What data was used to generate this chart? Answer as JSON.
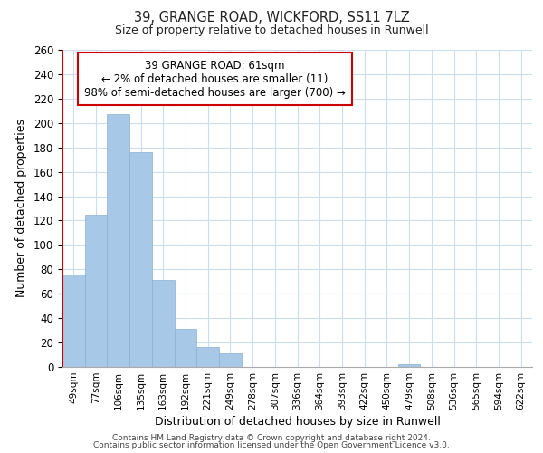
{
  "title1": "39, GRANGE ROAD, WICKFORD, SS11 7LZ",
  "title2": "Size of property relative to detached houses in Runwell",
  "xlabel": "Distribution of detached houses by size in Runwell",
  "ylabel": "Number of detached properties",
  "bar_values": [
    76,
    125,
    207,
    176,
    71,
    31,
    16,
    11,
    0,
    0,
    0,
    0,
    0,
    0,
    0,
    2,
    0,
    0,
    0,
    0,
    0
  ],
  "bar_labels": [
    "49sqm",
    "77sqm",
    "106sqm",
    "135sqm",
    "163sqm",
    "192sqm",
    "221sqm",
    "249sqm",
    "278sqm",
    "307sqm",
    "336sqm",
    "364sqm",
    "393sqm",
    "422sqm",
    "450sqm",
    "479sqm",
    "508sqm",
    "536sqm",
    "565sqm",
    "594sqm",
    "622sqm"
  ],
  "bar_color": "#a8c8e8",
  "bar_edge_color": "#a8c8e8",
  "ylim_max": 260,
  "yticks": [
    0,
    20,
    40,
    60,
    80,
    100,
    120,
    140,
    160,
    180,
    200,
    220,
    240,
    260
  ],
  "red_line_x": -0.07,
  "annotation_title": "39 GRANGE ROAD: 61sqm",
  "annotation_line1": "← 2% of detached houses are smaller (11)",
  "annotation_line2": "98% of semi-detached houses are larger (700) →",
  "annotation_box_color": "#ffffff",
  "annotation_border_color": "#cc0000",
  "footer1": "Contains HM Land Registry data © Crown copyright and database right 2024.",
  "footer2": "Contains public sector information licensed under the Open Government Licence v3.0.",
  "background_color": "#ffffff",
  "grid_color": "#ccddee"
}
